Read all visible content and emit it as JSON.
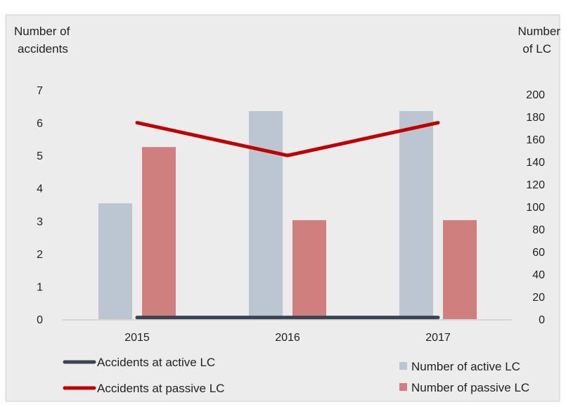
{
  "chart_data": {
    "type": "bar",
    "categories": [
      "2015",
      "2016",
      "2017"
    ],
    "left_axis": {
      "label_lines": [
        "Number of",
        "accidents"
      ],
      "ticks": [
        0,
        1,
        2,
        3,
        4,
        5,
        6,
        7
      ],
      "range": [
        0,
        7
      ]
    },
    "right_axis": {
      "label_lines": [
        "Number",
        "of LC"
      ],
      "ticks": [
        0,
        20,
        40,
        60,
        80,
        100,
        120,
        140,
        160,
        180,
        200
      ],
      "range": [
        0,
        200
      ]
    },
    "bar_series": [
      {
        "name": "Number of active LC",
        "axis": "right",
        "color": "#bcc6d1",
        "values": [
          103,
          185,
          185
        ]
      },
      {
        "name": "Number of passive LC",
        "axis": "right",
        "color": "#cf7f7d",
        "values": [
          153,
          88,
          88
        ]
      }
    ],
    "line_series": [
      {
        "name": "Accidents at active LC",
        "axis": "left",
        "color": "#3a4454",
        "values": [
          0.05,
          0.05,
          0.05
        ]
      },
      {
        "name": "Accidents at passive LC",
        "axis": "left",
        "color": "#c00000",
        "values": [
          6.0,
          5.0,
          6.0
        ]
      }
    ],
    "grid": false,
    "legend_position": "bottom",
    "background_color": "#ececec"
  }
}
